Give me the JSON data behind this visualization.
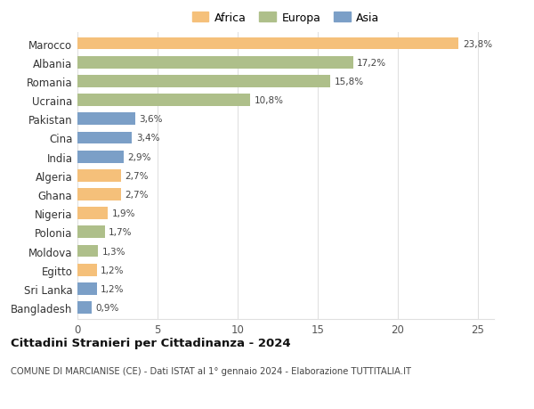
{
  "categories": [
    "Marocco",
    "Albania",
    "Romania",
    "Ucraina",
    "Pakistan",
    "Cina",
    "India",
    "Algeria",
    "Ghana",
    "Nigeria",
    "Polonia",
    "Moldova",
    "Egitto",
    "Sri Lanka",
    "Bangladesh"
  ],
  "values": [
    23.8,
    17.2,
    15.8,
    10.8,
    3.6,
    3.4,
    2.9,
    2.7,
    2.7,
    1.9,
    1.7,
    1.3,
    1.2,
    1.2,
    0.9
  ],
  "labels": [
    "23,8%",
    "17,2%",
    "15,8%",
    "10,8%",
    "3,6%",
    "3,4%",
    "2,9%",
    "2,7%",
    "2,7%",
    "1,9%",
    "1,7%",
    "1,3%",
    "1,2%",
    "1,2%",
    "0,9%"
  ],
  "continent": [
    "Africa",
    "Europa",
    "Europa",
    "Europa",
    "Asia",
    "Asia",
    "Asia",
    "Africa",
    "Africa",
    "Africa",
    "Europa",
    "Europa",
    "Africa",
    "Asia",
    "Asia"
  ],
  "colors": {
    "Africa": "#F5C07A",
    "Europa": "#AEBF8A",
    "Asia": "#7B9FC7"
  },
  "xlim": [
    0,
    26
  ],
  "xticks": [
    0,
    5,
    10,
    15,
    20,
    25
  ],
  "title": "Cittadini Stranieri per Cittadinanza - 2024",
  "subtitle": "COMUNE DI MARCIANISE (CE) - Dati ISTAT al 1° gennaio 2024 - Elaborazione TUTTITALIA.IT",
  "background_color": "#ffffff",
  "grid_color": "#e0e0e0",
  "bar_height": 0.65
}
